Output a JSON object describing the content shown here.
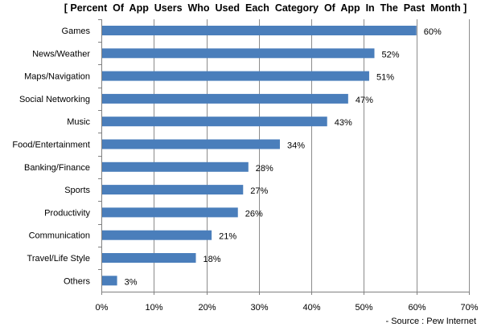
{
  "chart_data": {
    "type": "bar",
    "orientation": "horizontal",
    "title": "[ Percent  Of  App  Users  Who  Used  Each  Category  Of  App  In  The  Past  Month ]",
    "categories": [
      "Games",
      "News/Weather",
      "Maps/Navigation",
      "Social Networking",
      "Music",
      "Food/Entertainment",
      "Banking/Finance",
      "Sports",
      "Productivity",
      "Communication",
      "Travel/Life Style",
      "Others"
    ],
    "values": [
      60,
      52,
      51,
      47,
      43,
      34,
      28,
      27,
      26,
      21,
      18,
      3
    ],
    "value_labels": [
      "60%",
      "52%",
      "51%",
      "47%",
      "43%",
      "34%",
      "28%",
      "27%",
      "26%",
      "21%",
      "18%",
      "3%"
    ],
    "xlim": [
      0,
      70
    ],
    "x_ticks": [
      0,
      10,
      20,
      30,
      40,
      50,
      60,
      70
    ],
    "x_tick_labels": [
      "0%",
      "10%",
      "20%",
      "30%",
      "40%",
      "50%",
      "60%",
      "70%"
    ],
    "grid": "vertical",
    "bar_color": "#4a7ebb",
    "gridline_color": "#8c8c8c",
    "source": "- Source : Pew Internet"
  }
}
